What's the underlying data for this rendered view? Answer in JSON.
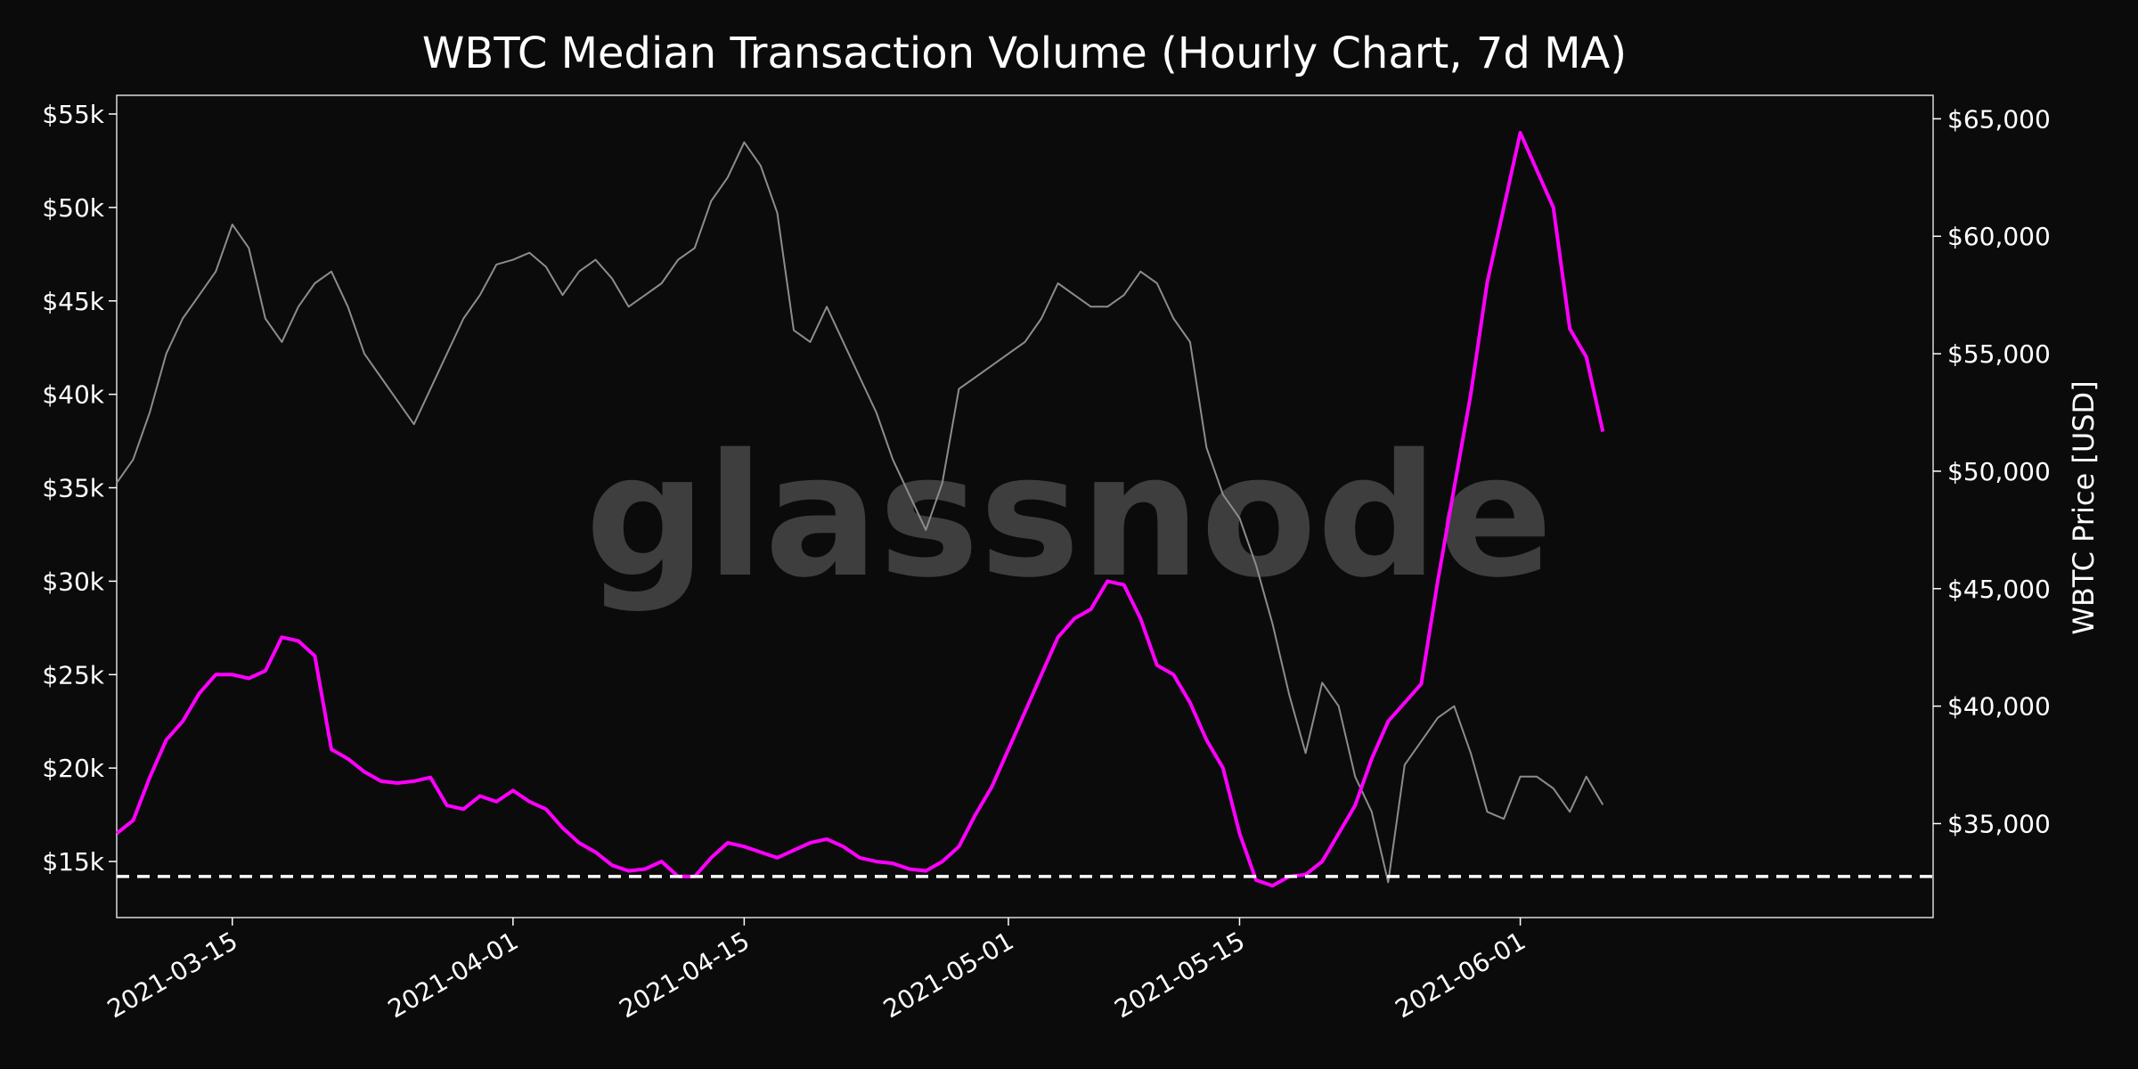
{
  "chart_data": {
    "type": "line",
    "title": "WBTC Median Transaction Volume (Hourly Chart, 7d MA)",
    "watermark": "glassnode",
    "x_axis": {
      "type": "date",
      "range": [
        "2021-03-08",
        "2021-06-26"
      ],
      "ticks": [
        "2021-03-15",
        "2021-04-01",
        "2021-04-15",
        "2021-05-01",
        "2021-05-15",
        "2021-06-01"
      ]
    },
    "y_left": {
      "range": [
        12000,
        56000
      ],
      "ticks": [
        15000,
        20000,
        25000,
        30000,
        35000,
        40000,
        45000,
        50000,
        55000
      ],
      "tick_labels": [
        "$15k",
        "$20k",
        "$25k",
        "$30k",
        "$35k",
        "$40k",
        "$45k",
        "$50k",
        "$55k"
      ]
    },
    "y_right": {
      "label": "WBTC Price [USD]",
      "range": [
        31000,
        66000
      ],
      "ticks": [
        35000,
        40000,
        45000,
        50000,
        55000,
        60000,
        65000
      ],
      "tick_labels": [
        "$35,000",
        "$40,000",
        "$45,000",
        "$50,000",
        "$55,000",
        "$60,000",
        "$65,000"
      ]
    },
    "reference_line": {
      "axis": "left",
      "value": 14200,
      "style": "dashed",
      "color": "#ffffff"
    },
    "grid": false,
    "series": [
      {
        "axis": "left",
        "color": "#ff00ff",
        "x": [
          "2021-03-08",
          "2021-03-09",
          "2021-03-10",
          "2021-03-11",
          "2021-03-12",
          "2021-03-13",
          "2021-03-14",
          "2021-03-15",
          "2021-03-16",
          "2021-03-17",
          "2021-03-18",
          "2021-03-19",
          "2021-03-20",
          "2021-03-21",
          "2021-03-22",
          "2021-03-23",
          "2021-03-24",
          "2021-03-25",
          "2021-03-26",
          "2021-03-27",
          "2021-03-28",
          "2021-03-29",
          "2021-03-30",
          "2021-03-31",
          "2021-04-01",
          "2021-04-02",
          "2021-04-03",
          "2021-04-04",
          "2021-04-05",
          "2021-04-06",
          "2021-04-07",
          "2021-04-08",
          "2021-04-09",
          "2021-04-10",
          "2021-04-11",
          "2021-04-12",
          "2021-04-13",
          "2021-04-14",
          "2021-04-15",
          "2021-04-16",
          "2021-04-17",
          "2021-04-18",
          "2021-04-19",
          "2021-04-20",
          "2021-04-21",
          "2021-04-22",
          "2021-04-23",
          "2021-04-24",
          "2021-04-25",
          "2021-04-26",
          "2021-04-27",
          "2021-04-28",
          "2021-04-29",
          "2021-04-30",
          "2021-05-01",
          "2021-05-02",
          "2021-05-03",
          "2021-05-04",
          "2021-05-05",
          "2021-05-06",
          "2021-05-07",
          "2021-05-08",
          "2021-05-09",
          "2021-05-10",
          "2021-05-11",
          "2021-05-12",
          "2021-05-13",
          "2021-05-14",
          "2021-05-15",
          "2021-05-16",
          "2021-05-17",
          "2021-05-18",
          "2021-05-19",
          "2021-05-20",
          "2021-05-21",
          "2021-05-22",
          "2021-05-23",
          "2021-05-24",
          "2021-05-25",
          "2021-05-26",
          "2021-05-27",
          "2021-05-28",
          "2021-05-29",
          "2021-05-30",
          "2021-05-31",
          "2021-06-01",
          "2021-06-02",
          "2021-06-03",
          "2021-06-04",
          "2021-06-05",
          "2021-06-06"
        ],
        "values": [
          16500,
          17200,
          19500,
          21500,
          22500,
          24000,
          25000,
          25000,
          24800,
          25200,
          27000,
          26800,
          26000,
          21000,
          20500,
          19800,
          19300,
          19200,
          19300,
          19500,
          18000,
          17800,
          18500,
          18200,
          18800,
          18200,
          17800,
          16800,
          16000,
          15500,
          14800,
          14500,
          14600,
          15000,
          14200,
          14200,
          15200,
          16000,
          15800,
          15500,
          15200,
          15600,
          16000,
          16200,
          15800,
          15200,
          15000,
          14900,
          14600,
          14500,
          15000,
          15800,
          17500,
          19000,
          21000,
          23000,
          25000,
          27000,
          28000,
          28500,
          30000,
          29800,
          28000,
          25500,
          25000,
          23500,
          21500,
          20000,
          16500,
          14000,
          13700,
          14200,
          14300,
          15000,
          16500,
          18000,
          20500,
          22500,
          23500,
          24500,
          30000,
          35000,
          40000,
          46000,
          50000,
          54000,
          52000,
          50000,
          43500,
          42000,
          38000
        ]
      },
      {
        "axis": "right",
        "color": "#8c8c8c",
        "x": [
          "2021-03-08",
          "2021-03-09",
          "2021-03-10",
          "2021-03-11",
          "2021-03-12",
          "2021-03-13",
          "2021-03-14",
          "2021-03-15",
          "2021-03-16",
          "2021-03-17",
          "2021-03-18",
          "2021-03-19",
          "2021-03-20",
          "2021-03-21",
          "2021-03-22",
          "2021-03-23",
          "2021-03-24",
          "2021-03-25",
          "2021-03-26",
          "2021-03-27",
          "2021-03-28",
          "2021-03-29",
          "2021-03-30",
          "2021-03-31",
          "2021-04-01",
          "2021-04-02",
          "2021-04-03",
          "2021-04-04",
          "2021-04-05",
          "2021-04-06",
          "2021-04-07",
          "2021-04-08",
          "2021-04-09",
          "2021-04-10",
          "2021-04-11",
          "2021-04-12",
          "2021-04-13",
          "2021-04-14",
          "2021-04-15",
          "2021-04-16",
          "2021-04-17",
          "2021-04-18",
          "2021-04-19",
          "2021-04-20",
          "2021-04-21",
          "2021-04-22",
          "2021-04-23",
          "2021-04-24",
          "2021-04-25",
          "2021-04-26",
          "2021-04-27",
          "2021-04-28",
          "2021-04-29",
          "2021-04-30",
          "2021-05-01",
          "2021-05-02",
          "2021-05-03",
          "2021-05-04",
          "2021-05-05",
          "2021-05-06",
          "2021-05-07",
          "2021-05-08",
          "2021-05-09",
          "2021-05-10",
          "2021-05-11",
          "2021-05-12",
          "2021-05-13",
          "2021-05-14",
          "2021-05-15",
          "2021-05-16",
          "2021-05-17",
          "2021-05-18",
          "2021-05-19",
          "2021-05-20",
          "2021-05-21",
          "2021-05-22",
          "2021-05-23",
          "2021-05-24",
          "2021-05-25",
          "2021-05-26",
          "2021-05-27",
          "2021-05-28",
          "2021-05-29",
          "2021-05-30",
          "2021-05-31",
          "2021-06-01",
          "2021-06-02",
          "2021-06-03",
          "2021-06-04",
          "2021-06-05",
          "2021-06-06"
        ],
        "values": [
          49500,
          50500,
          52500,
          55000,
          56500,
          57500,
          58500,
          60500,
          59500,
          56500,
          55500,
          57000,
          58000,
          58500,
          57000,
          55000,
          54000,
          53000,
          52000,
          53500,
          55000,
          56500,
          57500,
          58800,
          59000,
          59300,
          58700,
          57500,
          58500,
          59000,
          58200,
          57000,
          57500,
          58000,
          59000,
          59500,
          61500,
          62500,
          64000,
          63000,
          61000,
          56000,
          55500,
          57000,
          55500,
          54000,
          52500,
          50500,
          49000,
          47500,
          49500,
          53500,
          54000,
          54500,
          55000,
          55500,
          56500,
          58000,
          57500,
          57000,
          57000,
          57500,
          58500,
          58000,
          56500,
          55500,
          51000,
          49000,
          48000,
          46000,
          43500,
          40500,
          38000,
          41000,
          40000,
          37000,
          35500,
          32500,
          37500,
          38500,
          39500,
          40000,
          38000,
          35500,
          35200,
          37000,
          37000,
          36500,
          35500,
          37000,
          35800
        ]
      }
    ]
  }
}
